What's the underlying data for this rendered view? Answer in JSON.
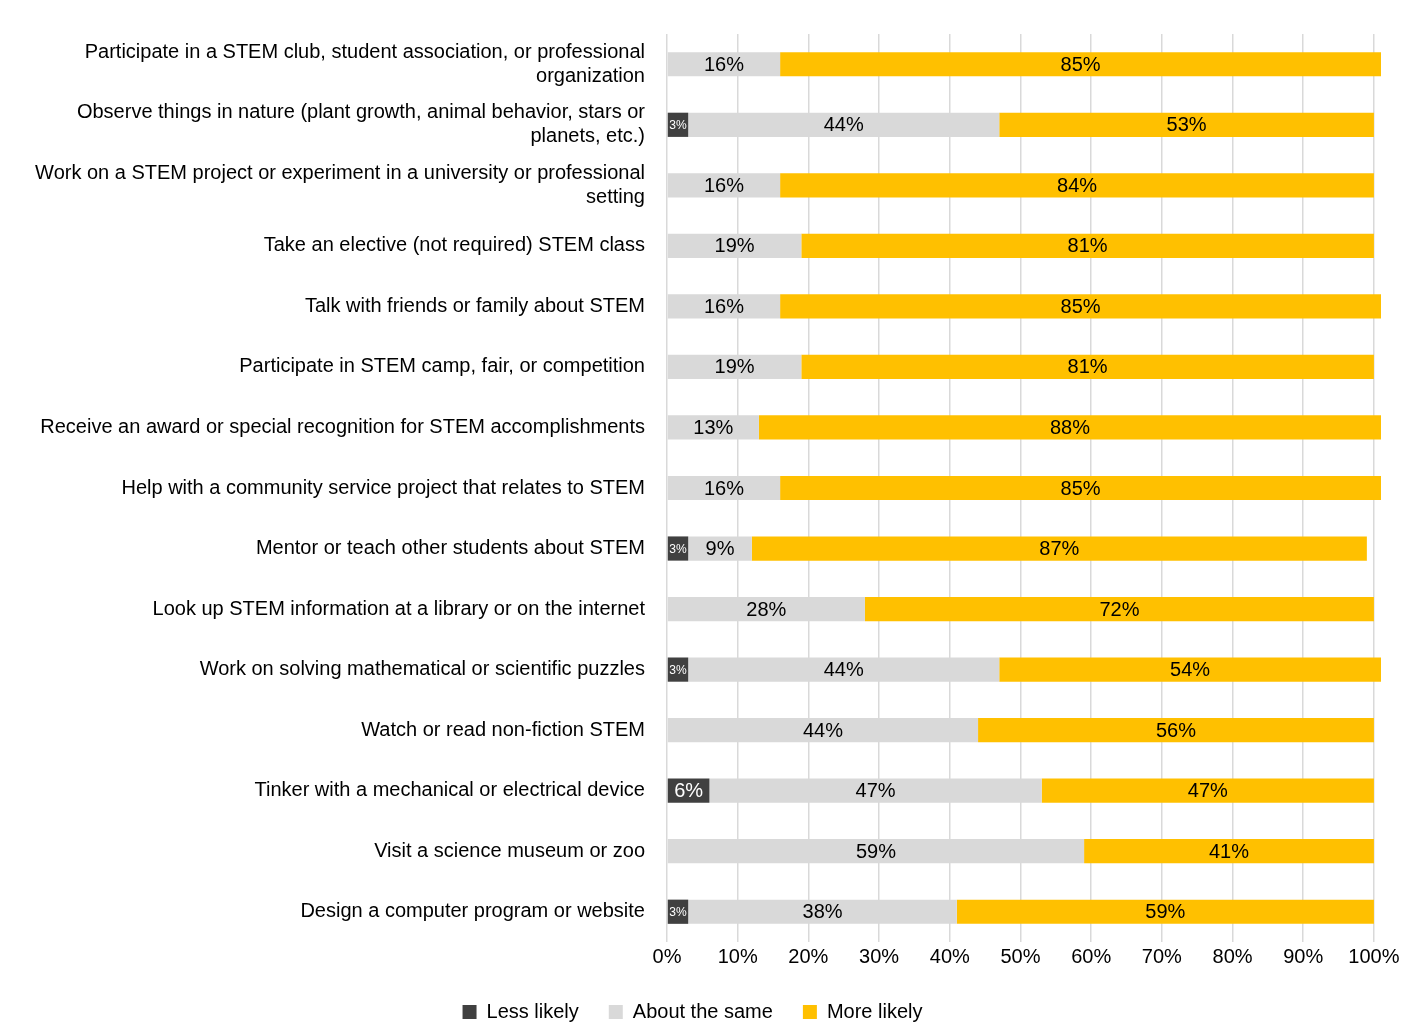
{
  "chart_data": {
    "type": "bar",
    "orientation": "horizontal",
    "stacked": true,
    "categories": [
      "Participate in a STEM club, student association, or professional organization",
      "Observe things in nature (plant growth, animal behavior, stars or planets, etc.)",
      "Work on a STEM project or experiment in a university or professional setting",
      "Take an elective (not required) STEM class",
      "Talk with friends or family about STEM",
      "Participate in STEM camp, fair, or competition",
      "Receive an award or special recognition for STEM accomplishments",
      "Help with a community service project that relates to STEM",
      "Mentor or teach other students about STEM",
      "Look up STEM information at a library or on the internet",
      "Work on solving mathematical or scientific puzzles",
      "Watch or read non-fiction STEM",
      "Tinker with a mechanical or electrical device",
      "Visit a science museum or zoo",
      "Design a computer program or website"
    ],
    "series": [
      {
        "name": "Less likely",
        "color": "#404040",
        "values": [
          0,
          3,
          0,
          0,
          0,
          0,
          0,
          0,
          3,
          0,
          3,
          0,
          6,
          0,
          3
        ],
        "value_labels": [
          null,
          "3%",
          null,
          null,
          null,
          null,
          null,
          null,
          "3%",
          null,
          "3%",
          null,
          "6%",
          null,
          "3%"
        ]
      },
      {
        "name": "About the same",
        "color": "#d9d9d9",
        "values": [
          16,
          44,
          16,
          19,
          16,
          19,
          13,
          16,
          9,
          28,
          44,
          44,
          47,
          59,
          38
        ],
        "value_labels": [
          "16%",
          "44%",
          "16%",
          "19%",
          "16%",
          "19%",
          "13%",
          "16%",
          "9%",
          "28%",
          "44%",
          "44%",
          "47%",
          "59%",
          "38%"
        ]
      },
      {
        "name": "More likely",
        "color": "#ffc000",
        "values": [
          85,
          53,
          84,
          81,
          85,
          81,
          88,
          85,
          87,
          72,
          54,
          56,
          47,
          41,
          59
        ],
        "value_labels": [
          "85%",
          "53%",
          "84%",
          "81%",
          "85%",
          "81%",
          "88%",
          "85%",
          "87%",
          "72%",
          "54%",
          "56%",
          "47%",
          "41%",
          "59%"
        ]
      }
    ],
    "xlim": [
      0,
      101
    ],
    "xticks": [
      {
        "value": 0,
        "label": "0%"
      },
      {
        "value": 10,
        "label": "10%"
      },
      {
        "value": 20,
        "label": "20%"
      },
      {
        "value": 30,
        "label": "30%"
      },
      {
        "value": 40,
        "label": "40%"
      },
      {
        "value": 50,
        "label": "50%"
      },
      {
        "value": 60,
        "label": "60%"
      },
      {
        "value": 70,
        "label": "70%"
      },
      {
        "value": 80,
        "label": "80%"
      },
      {
        "value": 90,
        "label": "90%"
      },
      {
        "value": 100,
        "label": "100%"
      }
    ],
    "grid": "x",
    "legend": "bottom"
  }
}
